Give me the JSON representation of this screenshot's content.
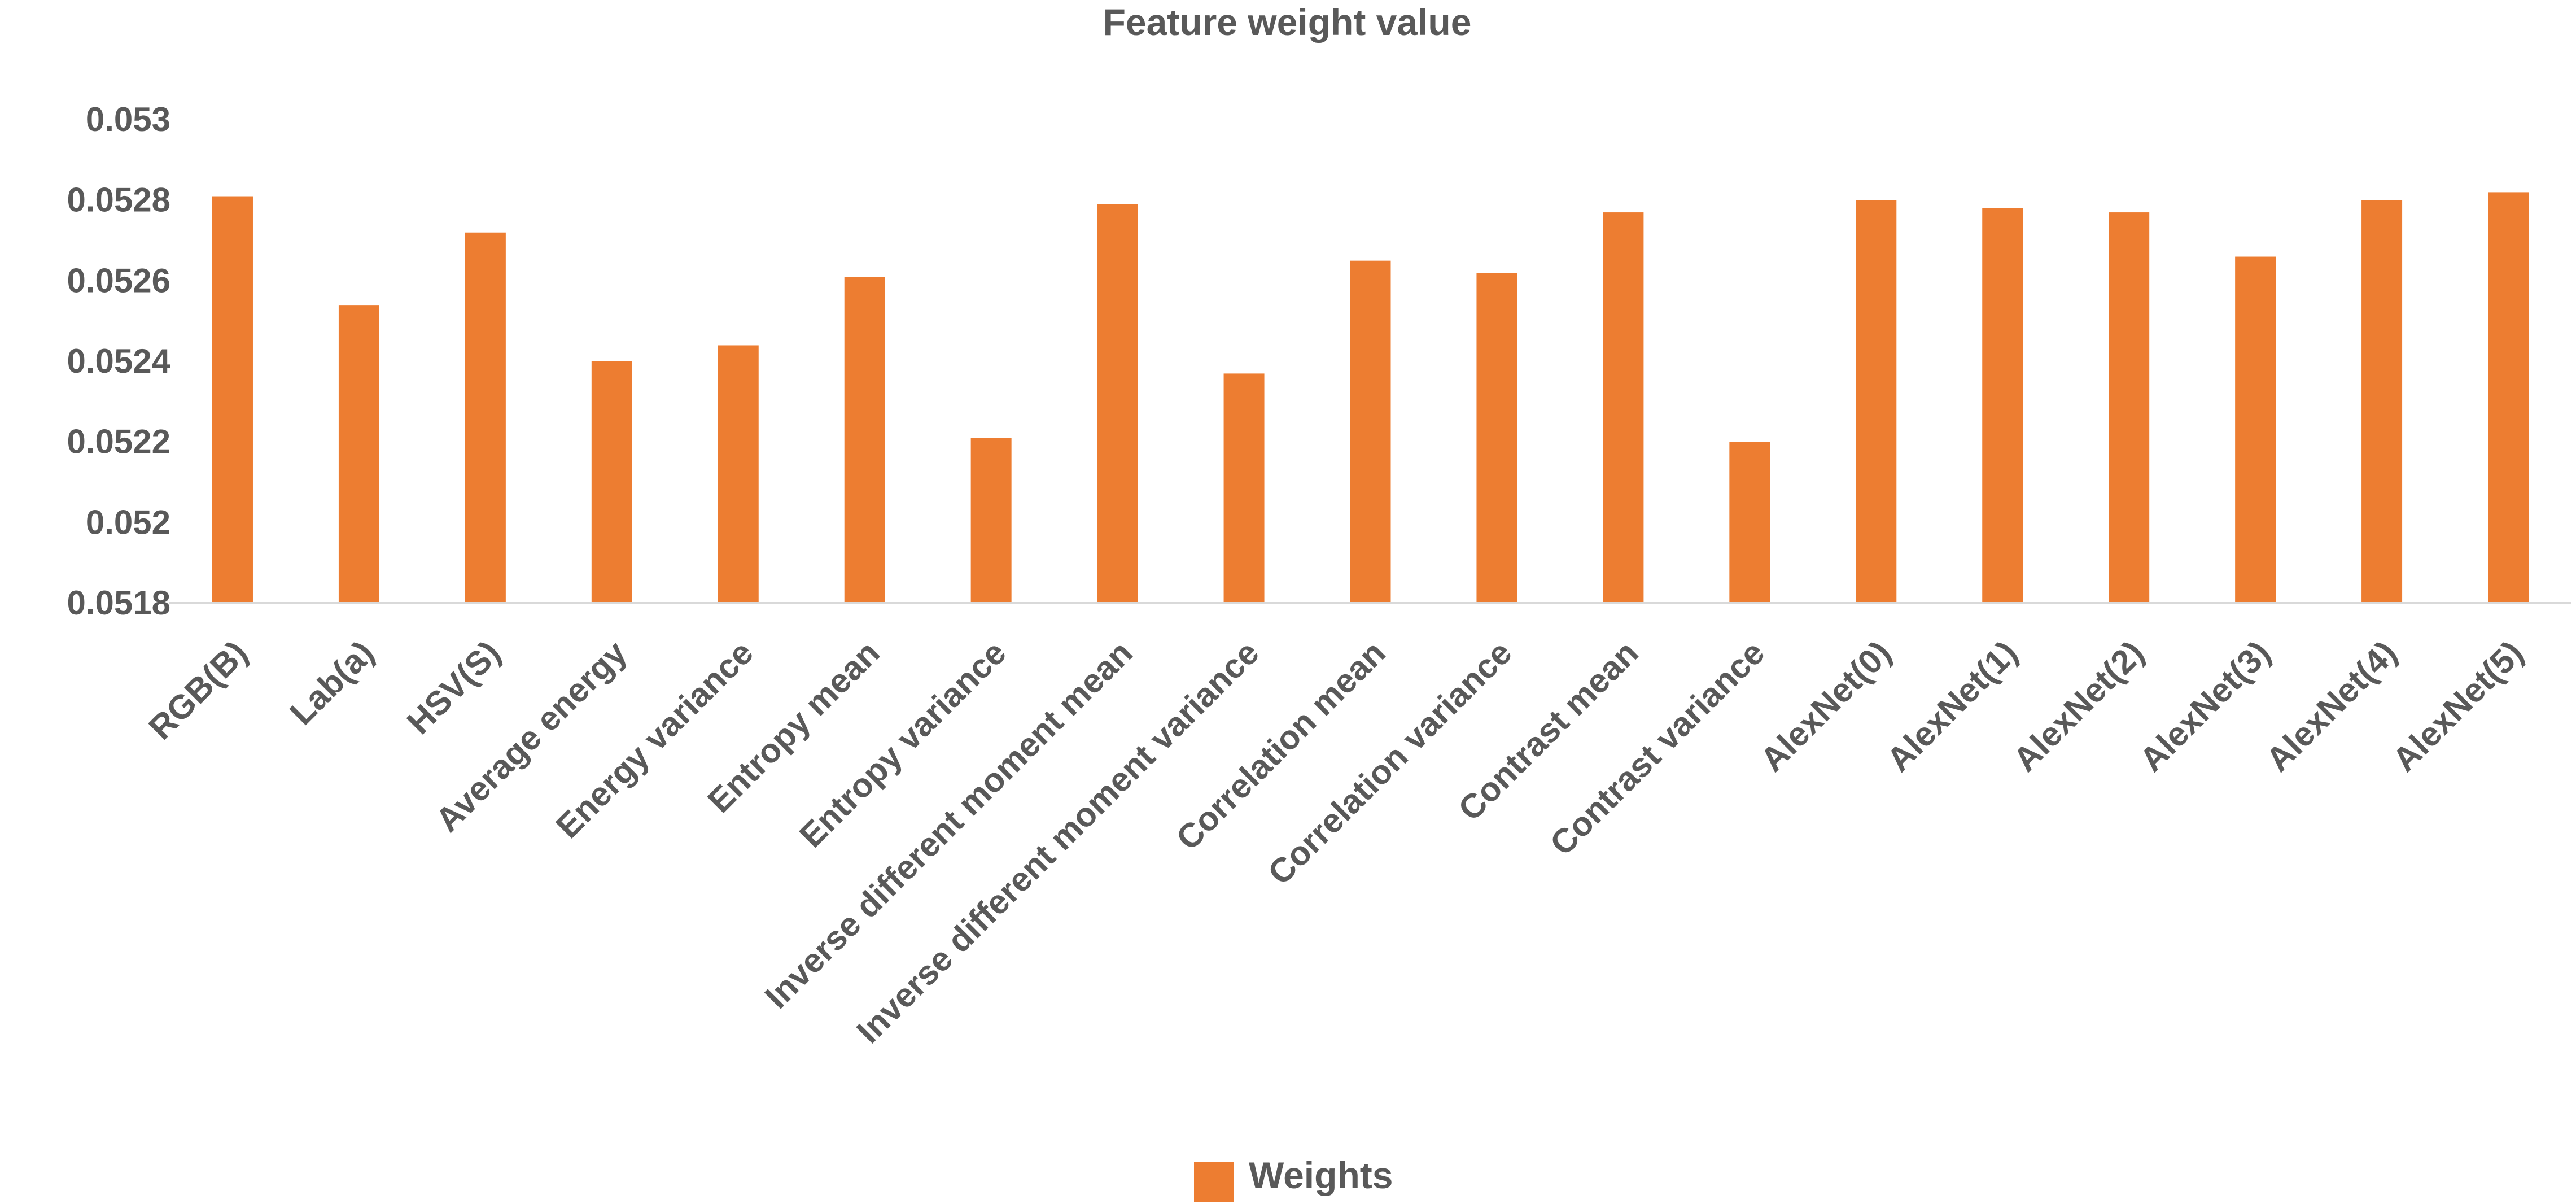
{
  "chart_data": {
    "type": "bar",
    "title": "Feature weight value",
    "xlabel": "",
    "ylabel": "",
    "categories": [
      "RGB(B)",
      "Lab(a)",
      "HSV(S)",
      "Average energy",
      "Energy variance",
      "Entropy mean",
      "Entropy variance",
      "Inverse different moment mean",
      "Inverse different moment variance",
      "Correlation mean",
      "Correlation variance",
      "Contrast mean",
      "Contrast variance",
      "AlexNet(0)",
      "AlexNet(1)",
      "AlexNet(2)",
      "AlexNet(3)",
      "AlexNet(4)",
      "AlexNet(5)"
    ],
    "series": [
      {
        "name": "Weights",
        "color": "#ED7D31",
        "values": [
          0.05281,
          0.05254,
          0.05272,
          0.0524,
          0.05244,
          0.05261,
          0.05221,
          0.05279,
          0.05237,
          0.05265,
          0.05262,
          0.05277,
          0.0522,
          0.0528,
          0.05278,
          0.05277,
          0.05266,
          0.0528,
          0.05282
        ]
      }
    ],
    "ylim": [
      0.0518,
      0.053
    ],
    "yticks": [
      0.0518,
      0.052,
      0.0522,
      0.0524,
      0.0526,
      0.0528,
      0.053
    ],
    "ytick_labels": [
      "0.0518",
      "0.052",
      "0.0522",
      "0.0524",
      "0.0526",
      "0.0528",
      "0.053"
    ],
    "grid": false,
    "legend": {
      "position": "bottom",
      "entries": [
        "Weights"
      ]
    }
  }
}
